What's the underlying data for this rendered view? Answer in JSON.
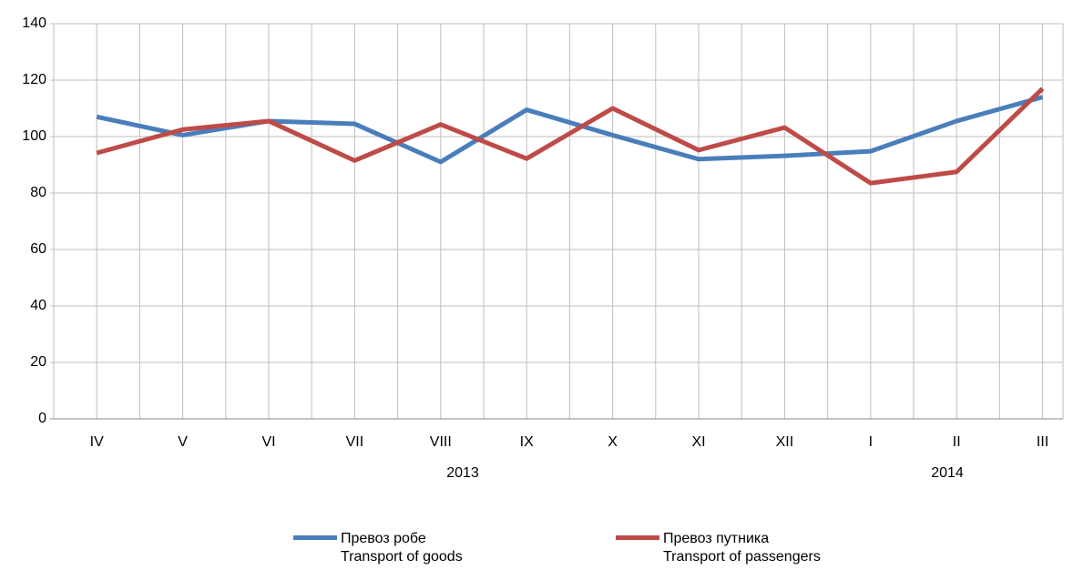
{
  "chart_data": {
    "type": "line",
    "categories": [
      "IV",
      "V",
      "VI",
      "VII",
      "VIII",
      "IX",
      "X",
      "XI",
      "XII",
      "I",
      "II",
      "III"
    ],
    "annotations": [
      "2013",
      "2014"
    ],
    "series": [
      {
        "name": "Превоз робе\nTransport of goods",
        "color": "#4a7ebb",
        "values": [
          107,
          100.5,
          105.5,
          104.5,
          91,
          109.5,
          100.5,
          92,
          93.2,
          94.8,
          105.5,
          114
        ]
      },
      {
        "name": "Превоз путника\nTransport of passengers",
        "color": "#be4b48",
        "values": [
          94.2,
          102.5,
          105.5,
          91.5,
          104.3,
          92.2,
          110,
          95.2,
          103.2,
          83.5,
          87.5,
          117
        ]
      }
    ],
    "ylim": [
      0,
      140
    ],
    "yticks": [
      0,
      20,
      40,
      60,
      80,
      100,
      120,
      140
    ],
    "grid": true
  }
}
